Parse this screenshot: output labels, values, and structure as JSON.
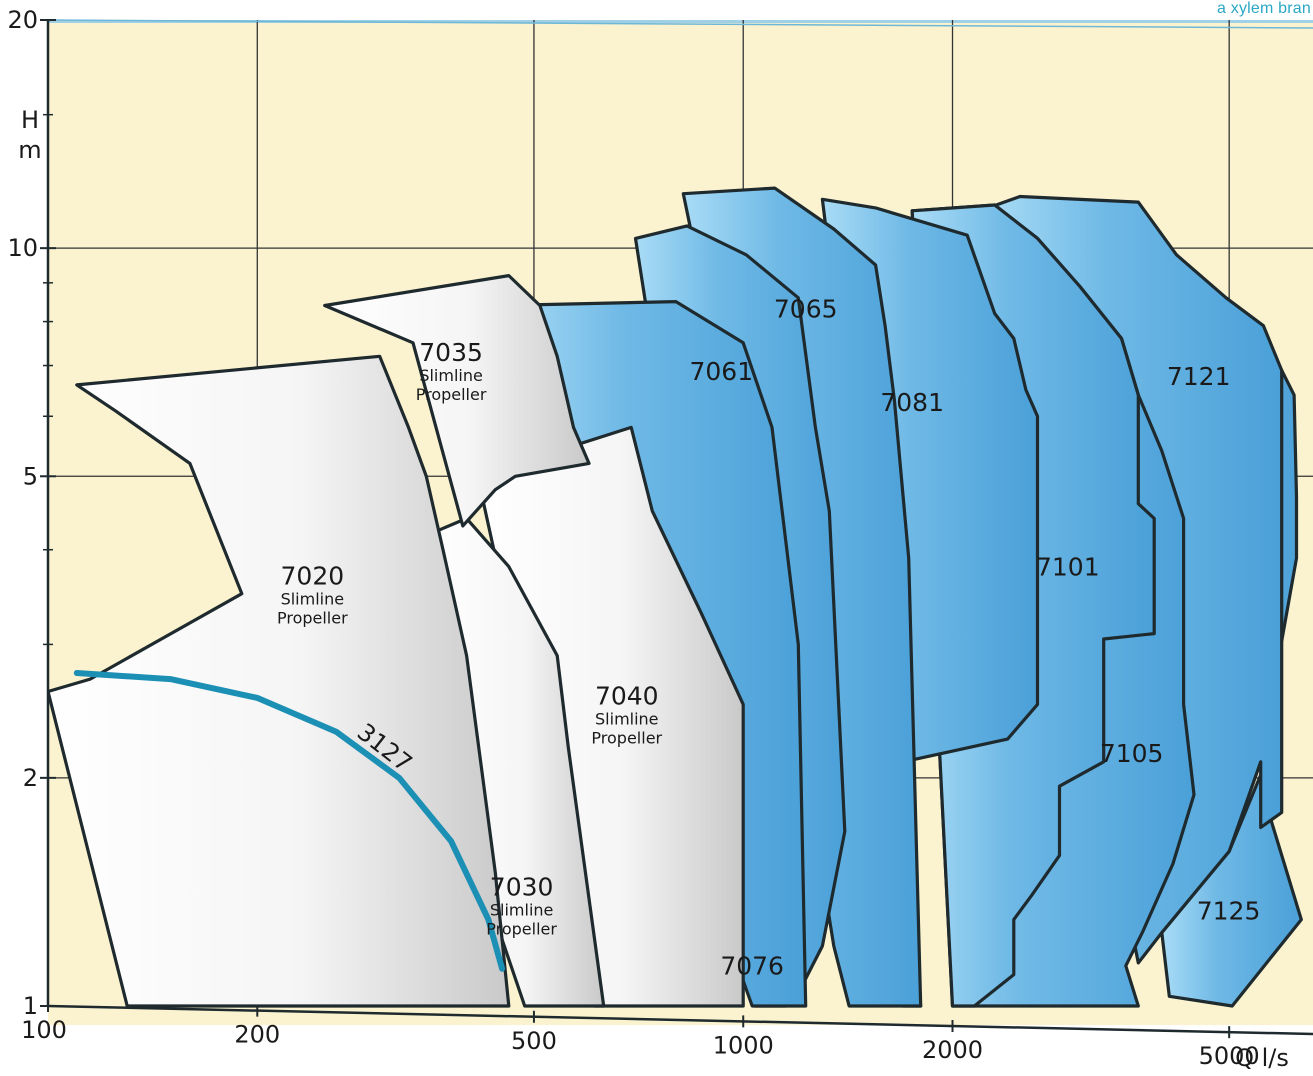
{
  "brand_text": "a xylem bran",
  "colors": {
    "background_plot": "#fbf3cf",
    "grey_region": "#e6e6e6",
    "blue_region": "#72bce7",
    "outline": "#1e2a2e",
    "curve_3127": "#1c8fb5",
    "grid": "#333333",
    "brand": "#2aa8c6"
  },
  "chart_data": {
    "type": "area",
    "title": "",
    "xlabel": "Q l/s",
    "ylabel_top": "H",
    "ylabel_bottom": "m",
    "x_scale": "log",
    "y_scale": "log",
    "xlim": [
      100,
      6600
    ],
    "ylim": [
      1,
      20
    ],
    "x_ticks": [
      {
        "value": 100,
        "label": "100"
      },
      {
        "value": 200,
        "label": "200"
      },
      {
        "value": 500,
        "label": "500"
      },
      {
        "value": 1000,
        "label": "1000"
      },
      {
        "value": 2000,
        "label": "2000"
      },
      {
        "value": 5000,
        "label": "5000"
      }
    ],
    "y_ticks": [
      {
        "value": 1,
        "label": "1"
      },
      {
        "value": 2,
        "label": "2"
      },
      {
        "value": 5,
        "label": "5"
      },
      {
        "value": 10,
        "label": "10"
      },
      {
        "value": 20,
        "label": "20"
      }
    ],
    "grid": true,
    "series": [
      {
        "name": "7125",
        "lines": [],
        "fill": "blue",
        "label_at": [
          4990,
          1.3
        ],
        "points": [
          [
            4000,
            1.25
          ],
          [
            5000,
            1.6
          ],
          [
            5650,
            2.1
          ],
          [
            5900,
            2.9
          ],
          [
            6250,
            3.9
          ],
          [
            6250,
            4.7
          ],
          [
            6200,
            6.4
          ],
          [
            5950,
            6.9
          ],
          [
            5700,
            1.8
          ],
          [
            6350,
            1.3
          ],
          [
            5050,
            1.0
          ],
          [
            4100,
            1.03
          ]
        ]
      },
      {
        "name": "7121",
        "lines": [],
        "fill": "blue",
        "label_at": [
          4520,
          6.6
        ],
        "points": [
          [
            2250,
            11.3
          ],
          [
            2500,
            11.7
          ],
          [
            3700,
            11.5
          ],
          [
            4200,
            9.8
          ],
          [
            4950,
            8.6
          ],
          [
            5600,
            7.9
          ],
          [
            5950,
            6.9
          ],
          [
            5950,
            1.8
          ],
          [
            5550,
            1.72
          ],
          [
            5550,
            2.1
          ],
          [
            5000,
            1.6
          ],
          [
            4000,
            1.25
          ],
          [
            3700,
            1.14
          ]
        ]
      },
      {
        "name": "7105",
        "lines": [],
        "fill": "blue",
        "label_at": [
          3620,
          2.1
        ],
        "points": [
          [
            1750,
            11.2
          ],
          [
            2300,
            11.4
          ],
          [
            2650,
            10.3
          ],
          [
            3050,
            8.9
          ],
          [
            3500,
            7.6
          ],
          [
            3700,
            6.4
          ],
          [
            4000,
            5.4
          ],
          [
            4300,
            4.4
          ],
          [
            4300,
            2.5
          ],
          [
            4450,
            1.9
          ],
          [
            4150,
            1.54
          ],
          [
            3750,
            1.25
          ],
          [
            3550,
            1.13
          ],
          [
            3700,
            1.0
          ],
          [
            2000,
            1.0
          ]
        ]
      },
      {
        "name": "7101",
        "lines": [],
        "fill": "blue",
        "label_at": [
          2930,
          3.7
        ],
        "points": [
          [
            1750,
            11.2
          ],
          [
            2300,
            11.4
          ],
          [
            2650,
            10.3
          ],
          [
            3050,
            8.9
          ],
          [
            3500,
            7.6
          ],
          [
            3700,
            6.4
          ],
          [
            3700,
            4.6
          ],
          [
            3900,
            4.4
          ],
          [
            3900,
            3.1
          ],
          [
            3300,
            3.05
          ],
          [
            3300,
            2.1
          ],
          [
            2850,
            1.95
          ],
          [
            2850,
            1.58
          ],
          [
            2600,
            1.4
          ],
          [
            2450,
            1.3
          ],
          [
            2450,
            1.1
          ],
          [
            2150,
            1.0
          ],
          [
            2000,
            1.0
          ]
        ]
      },
      {
        "name": "7081",
        "lines": [],
        "fill": "blue",
        "label_at": [
          1750,
          6.1
        ],
        "points": [
          [
            1300,
            11.6
          ],
          [
            1550,
            11.3
          ],
          [
            2100,
            10.4
          ],
          [
            2300,
            8.2
          ],
          [
            2450,
            7.6
          ],
          [
            2550,
            6.5
          ],
          [
            2650,
            6.0
          ],
          [
            2650,
            2.5
          ],
          [
            2400,
            2.25
          ],
          [
            1700,
            2.1
          ],
          [
            1700,
            1.0
          ],
          [
            1800,
            1.0
          ]
        ]
      },
      {
        "name": "7065",
        "lines": [],
        "fill": "blue",
        "label_at": [
          1230,
          8.1
        ],
        "points": [
          [
            820,
            11.8
          ],
          [
            1110,
            12.0
          ],
          [
            1350,
            10.6
          ],
          [
            1550,
            9.5
          ],
          [
            1600,
            7.9
          ],
          [
            1650,
            6.3
          ],
          [
            1730,
            3.9
          ],
          [
            1800,
            1.0
          ],
          [
            1420,
            1.0
          ],
          [
            1350,
            1.2
          ],
          [
            1270,
            1.7
          ]
        ]
      },
      {
        "name": "7061",
        "lines": [],
        "fill": "blue",
        "label_at": [
          930,
          6.7
        ],
        "points": [
          [
            700,
            10.3
          ],
          [
            830,
            10.7
          ],
          [
            1010,
            9.8
          ],
          [
            1200,
            8.6
          ],
          [
            1270,
            5.8
          ],
          [
            1330,
            4.5
          ],
          [
            1400,
            1.7
          ],
          [
            1300,
            1.2
          ],
          [
            1200,
            1.04
          ],
          [
            1150,
            1.0
          ],
          [
            1040,
            1.0
          ]
        ]
      },
      {
        "name": "7076",
        "lines": [],
        "fill": "blue",
        "label_at": [
          1030,
          1.1
        ],
        "points": [
          [
            450,
            8.4
          ],
          [
            800,
            8.5
          ],
          [
            1000,
            7.5
          ],
          [
            1100,
            5.8
          ],
          [
            1200,
            3.0
          ],
          [
            1230,
            1.0
          ],
          [
            1030,
            1.0
          ]
        ]
      },
      {
        "name": "7040",
        "lines": [
          "Slimline",
          "Propeller"
        ],
        "fill": "grey",
        "label_at": [
          680,
          2.5
        ],
        "points": [
          [
            415,
            5.0
          ],
          [
            690,
            5.8
          ],
          [
            740,
            4.5
          ],
          [
            870,
            3.3
          ],
          [
            1000,
            2.5
          ],
          [
            1000,
            1.0
          ],
          [
            610,
            1.0
          ]
        ]
      },
      {
        "name": "7030",
        "lines": [
          "Slimline",
          "Propeller"
        ],
        "fill": "grey",
        "label_at": [
          480,
          1.4
        ],
        "points": [
          [
            355,
            4.2
          ],
          [
            400,
            4.4
          ],
          [
            460,
            3.8
          ],
          [
            540,
            2.9
          ],
          [
            560,
            2.2
          ],
          [
            630,
            1.0
          ],
          [
            485,
            1.0
          ],
          [
            440,
            1.3
          ]
        ]
      },
      {
        "name": "7035",
        "lines": [
          "Slimline",
          "Propeller"
        ],
        "fill": "grey",
        "label_at": [
          380,
          7.1
        ],
        "points": [
          [
            250,
            8.4
          ],
          [
            460,
            9.2
          ],
          [
            510,
            8.4
          ],
          [
            540,
            7.2
          ],
          [
            570,
            5.8
          ],
          [
            600,
            5.2
          ],
          [
            470,
            5.0
          ],
          [
            440,
            4.8
          ],
          [
            395,
            4.3
          ],
          [
            335,
            7.5
          ]
        ]
      },
      {
        "name": "7020",
        "lines": [
          "Slimline",
          "Propeller"
        ],
        "fill": "grey",
        "label_at": [
          240,
          3.6
        ],
        "points": [
          [
            110,
            6.6
          ],
          [
            300,
            7.2
          ],
          [
            330,
            5.8
          ],
          [
            350,
            5.0
          ],
          [
            370,
            4.0
          ],
          [
            400,
            2.9
          ],
          [
            440,
            1.5
          ],
          [
            460,
            1.0
          ],
          [
            130,
            1.0
          ],
          [
            100,
            2.6
          ],
          [
            115,
            2.7
          ],
          [
            190,
            3.5
          ],
          [
            160,
            5.2
          ],
          [
            125,
            6.1
          ]
        ]
      }
    ],
    "curve_3127": {
      "name": "3127",
      "label_at": [
        300,
        2.15
      ],
      "points": [
        [
          110,
          2.75
        ],
        [
          150,
          2.7
        ],
        [
          200,
          2.55
        ],
        [
          260,
          2.3
        ],
        [
          320,
          2.0
        ],
        [
          380,
          1.65
        ],
        [
          430,
          1.3
        ],
        [
          450,
          1.12
        ]
      ]
    }
  }
}
